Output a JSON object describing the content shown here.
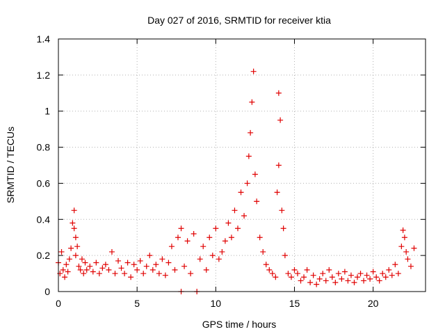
{
  "chart_data": {
    "type": "scatter",
    "title": "Day 027 of 2016, SRMTID for receiver ktia",
    "xlabel": "GPS time / hours",
    "ylabel": "SRMTID / TECUs",
    "xlim": [
      0,
      23.33
    ],
    "ylim": [
      0,
      1.4
    ],
    "xticks": [
      0,
      5,
      10,
      15,
      20
    ],
    "xtick_labels": [
      "0",
      "5",
      "10",
      "15",
      "20"
    ],
    "yticks": [
      0,
      0.2,
      0.4,
      0.6,
      0.8,
      1.0,
      1.2,
      1.4
    ],
    "ytick_labels": [
      "0",
      "0.2",
      "0.4",
      "0.6",
      "0.8",
      "1",
      "1.2",
      "1.4"
    ],
    "grid": true,
    "marker": "+",
    "series": [
      {
        "name": "SRMTID",
        "color": "#e00000",
        "x": [
          0.0,
          0.1,
          0.2,
          0.3,
          0.4,
          0.5,
          0.6,
          0.7,
          0.8,
          0.9,
          1.0,
          1.0,
          1.1,
          1.1,
          1.2,
          1.3,
          1.4,
          1.5,
          1.6,
          1.7,
          1.8,
          2.0,
          2.2,
          2.4,
          2.6,
          2.8,
          3.0,
          3.2,
          3.4,
          3.6,
          3.8,
          4.0,
          4.2,
          4.4,
          4.6,
          4.8,
          5.0,
          5.2,
          5.4,
          5.6,
          5.8,
          6.0,
          6.2,
          6.4,
          6.6,
          6.8,
          7.0,
          7.2,
          7.4,
          7.6,
          7.8,
          7.8,
          8.0,
          8.2,
          8.4,
          8.6,
          8.8,
          9.0,
          9.2,
          9.4,
          9.6,
          9.8,
          10.0,
          10.2,
          10.4,
          10.6,
          10.8,
          11.0,
          11.2,
          11.4,
          11.6,
          11.8,
          12.0,
          12.1,
          12.2,
          12.3,
          12.4,
          12.5,
          12.6,
          12.8,
          13.0,
          13.2,
          13.4,
          13.6,
          13.8,
          13.9,
          14.0,
          14.0,
          14.1,
          14.2,
          14.3,
          14.4,
          14.6,
          14.8,
          15.0,
          15.2,
          15.4,
          15.6,
          15.8,
          16.0,
          16.2,
          16.4,
          16.6,
          16.8,
          17.0,
          17.2,
          17.4,
          17.6,
          17.8,
          18.0,
          18.2,
          18.4,
          18.6,
          18.8,
          19.0,
          19.2,
          19.4,
          19.6,
          19.8,
          20.0,
          20.2,
          20.4,
          20.6,
          20.8,
          21.0,
          21.2,
          21.4,
          21.6,
          21.8,
          21.9,
          22.0,
          22.1,
          22.2,
          22.4,
          22.6
        ],
        "y": [
          0.16,
          0.1,
          0.22,
          0.12,
          0.08,
          0.15,
          0.11,
          0.18,
          0.24,
          0.38,
          0.45,
          0.35,
          0.3,
          0.2,
          0.25,
          0.14,
          0.12,
          0.18,
          0.1,
          0.16,
          0.12,
          0.14,
          0.11,
          0.16,
          0.1,
          0.13,
          0.15,
          0.12,
          0.22,
          0.1,
          0.17,
          0.13,
          0.1,
          0.16,
          0.08,
          0.15,
          0.12,
          0.17,
          0.1,
          0.14,
          0.2,
          0.12,
          0.15,
          0.1,
          0.18,
          0.09,
          0.16,
          0.25,
          0.12,
          0.3,
          0.35,
          0.0,
          0.14,
          0.28,
          0.1,
          0.32,
          0.0,
          0.18,
          0.25,
          0.12,
          0.3,
          0.2,
          0.35,
          0.18,
          0.22,
          0.28,
          0.38,
          0.3,
          0.45,
          0.35,
          0.55,
          0.42,
          0.6,
          0.75,
          0.88,
          1.05,
          1.22,
          0.65,
          0.5,
          0.3,
          0.22,
          0.15,
          0.12,
          0.1,
          0.08,
          0.55,
          0.7,
          1.1,
          0.95,
          0.45,
          0.35,
          0.2,
          0.1,
          0.08,
          0.12,
          0.1,
          0.06,
          0.08,
          0.12,
          0.05,
          0.09,
          0.04,
          0.07,
          0.1,
          0.06,
          0.12,
          0.08,
          0.05,
          0.1,
          0.07,
          0.11,
          0.06,
          0.09,
          0.05,
          0.08,
          0.1,
          0.06,
          0.09,
          0.07,
          0.11,
          0.08,
          0.06,
          0.1,
          0.08,
          0.12,
          0.09,
          0.15,
          0.1,
          0.25,
          0.34,
          0.3,
          0.22,
          0.18,
          0.14,
          0.24
        ]
      }
    ]
  }
}
